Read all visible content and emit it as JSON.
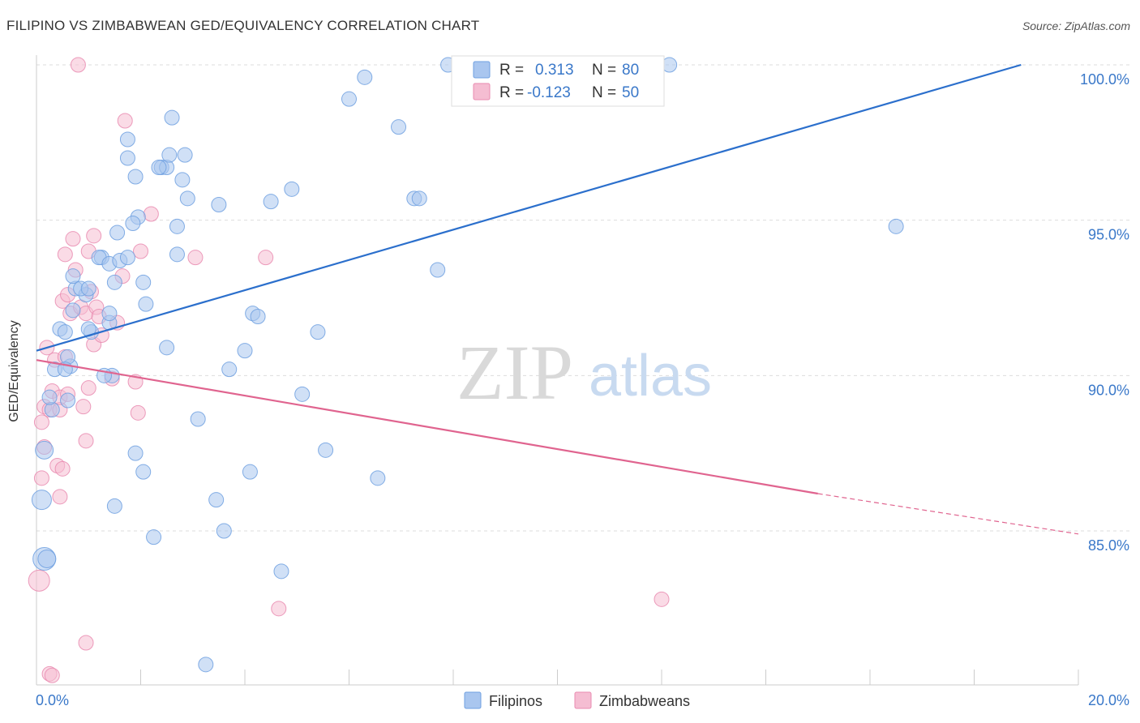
{
  "title": "FILIPINO VS ZIMBABWEAN GED/EQUIVALENCY CORRELATION CHART",
  "source": "Source: ZipAtlas.com",
  "watermark": {
    "zip": "ZIP",
    "atlas": "atlas"
  },
  "colors": {
    "filipinos": "#6fa0e0",
    "filipinos_fill": "#a9c6ef",
    "filipinos_line": "#2b6fcc",
    "zimbabweans": "#e98bb0",
    "zimbabweans_fill": "#f5bdd2",
    "zimbabweans_line": "#e0648f",
    "axis_text": "#3a78c9",
    "grid": "#dddddd"
  },
  "legend_top": {
    "rows": [
      {
        "r_label": "R =",
        "r_value": "0.313",
        "n_label": "N =",
        "n_value": "80"
      },
      {
        "r_label": "R =",
        "r_value": "-0.123",
        "n_label": "N =",
        "n_value": "50"
      }
    ]
  },
  "legend_bottom": [
    "Filipinos",
    "Zimbabweans"
  ],
  "chart_data": {
    "type": "scatter",
    "title": "FILIPINO VS ZIMBABWEAN GED/EQUIVALENCY CORRELATION CHART",
    "xlabel": "",
    "ylabel": "GED/Equivalency",
    "xlim": [
      0,
      20
    ],
    "ylim": [
      80.2,
      100.4
    ],
    "x_tick_labels": [
      "0.0%",
      "20.0%"
    ],
    "y_ticks": [
      85,
      90,
      95,
      100
    ],
    "y_tick_labels": [
      "85.0%",
      "90.0%",
      "95.0%",
      "100.0%"
    ],
    "grid": true,
    "legend_position": "bottom-center",
    "series": [
      {
        "name": "Filipinos",
        "r": 0.313,
        "n": 80,
        "trend": {
          "x0": 0.0,
          "y0": 90.8,
          "x1": 18.9,
          "y1": 100.0,
          "dashed_to": null
        },
        "points": [
          [
            0.15,
            84.1,
            14
          ],
          [
            0.2,
            84.1,
            11
          ],
          [
            0.1,
            86.0,
            12
          ],
          [
            0.15,
            87.6,
            11
          ],
          [
            0.3,
            88.9,
            9
          ],
          [
            0.25,
            89.3,
            9
          ],
          [
            0.35,
            90.2,
            9
          ],
          [
            0.6,
            89.2,
            9
          ],
          [
            0.45,
            91.5,
            9
          ],
          [
            0.55,
            91.4,
            9
          ],
          [
            0.65,
            90.3,
            9
          ],
          [
            0.6,
            90.6,
            9
          ],
          [
            0.75,
            92.8,
            9
          ],
          [
            0.7,
            93.2,
            9
          ],
          [
            0.95,
            92.6,
            9
          ],
          [
            0.85,
            92.8,
            9
          ],
          [
            0.7,
            92.1,
            9
          ],
          [
            1.05,
            91.4,
            9
          ],
          [
            1.0,
            91.5,
            9
          ],
          [
            1.25,
            93.8,
            9
          ],
          [
            1.2,
            93.8,
            9
          ],
          [
            1.4,
            93.6,
            9
          ],
          [
            1.5,
            93.0,
            9
          ],
          [
            1.6,
            93.7,
            9
          ],
          [
            1.75,
            93.8,
            9
          ],
          [
            1.55,
            94.6,
            9
          ],
          [
            1.95,
            95.1,
            9
          ],
          [
            1.85,
            94.9,
            9
          ],
          [
            1.9,
            96.4,
            9
          ],
          [
            1.75,
            97.0,
            9
          ],
          [
            1.75,
            97.6,
            9
          ],
          [
            2.4,
            96.7,
            9
          ],
          [
            2.5,
            96.7,
            9
          ],
          [
            2.6,
            98.3,
            9
          ],
          [
            2.55,
            97.1,
            9
          ],
          [
            2.85,
            97.1,
            9
          ],
          [
            2.8,
            96.3,
            9
          ],
          [
            2.9,
            95.7,
            9
          ],
          [
            2.7,
            94.8,
            9
          ],
          [
            2.7,
            93.9,
            9
          ],
          [
            2.5,
            90.9,
            9
          ],
          [
            2.1,
            92.3,
            9
          ],
          [
            2.05,
            93.0,
            9
          ],
          [
            1.4,
            91.7,
            9
          ],
          [
            1.45,
            90.0,
            9
          ],
          [
            1.4,
            92.0,
            9
          ],
          [
            1.3,
            90.0,
            9
          ],
          [
            1.9,
            87.5,
            9
          ],
          [
            2.05,
            86.9,
            9
          ],
          [
            1.5,
            85.8,
            9
          ],
          [
            2.25,
            84.8,
            9
          ],
          [
            3.1,
            88.6,
            9
          ],
          [
            3.45,
            86.0,
            9
          ],
          [
            3.6,
            85.0,
            9
          ],
          [
            3.7,
            90.2,
            9
          ],
          [
            4.0,
            90.8,
            9
          ],
          [
            4.15,
            92.0,
            9
          ],
          [
            4.25,
            91.9,
            9
          ],
          [
            4.1,
            86.9,
            9
          ],
          [
            4.7,
            83.7,
            9
          ],
          [
            5.1,
            89.4,
            9
          ],
          [
            5.4,
            91.4,
            9
          ],
          [
            5.55,
            87.6,
            9
          ],
          [
            3.5,
            95.5,
            9
          ],
          [
            4.5,
            95.6,
            9
          ],
          [
            4.9,
            96.0,
            9
          ],
          [
            6.0,
            98.9,
            9
          ],
          [
            6.3,
            99.6,
            9
          ],
          [
            6.55,
            86.7,
            9
          ],
          [
            6.95,
            98.0,
            9
          ],
          [
            7.25,
            95.7,
            9
          ],
          [
            7.35,
            95.7,
            9
          ],
          [
            7.7,
            93.4,
            9
          ],
          [
            7.9,
            100.0,
            9
          ],
          [
            12.15,
            100.0,
            9
          ],
          [
            16.5,
            94.8,
            9
          ],
          [
            3.25,
            80.7,
            9
          ],
          [
            2.35,
            96.7,
            9
          ],
          [
            1.0,
            92.8,
            9
          ],
          [
            0.55,
            90.2,
            9
          ]
        ]
      },
      {
        "name": "Zimbabweans",
        "r": -0.123,
        "n": 50,
        "trend": {
          "x0": 0.0,
          "y0": 90.5,
          "x1": 15.0,
          "y1": 86.2,
          "dashed_to": [
            20.0,
            84.9
          ]
        },
        "points": [
          [
            0.05,
            83.4,
            13
          ],
          [
            0.1,
            86.7,
            9
          ],
          [
            0.15,
            87.7,
            9
          ],
          [
            0.1,
            88.5,
            9
          ],
          [
            0.15,
            89.0,
            9
          ],
          [
            0.2,
            90.9,
            9
          ],
          [
            0.25,
            88.9,
            9
          ],
          [
            0.3,
            89.5,
            9
          ],
          [
            0.35,
            90.5,
            9
          ],
          [
            0.4,
            87.1,
            9
          ],
          [
            0.45,
            88.9,
            9
          ],
          [
            0.5,
            92.4,
            9
          ],
          [
            0.55,
            93.9,
            9
          ],
          [
            0.6,
            92.6,
            9
          ],
          [
            0.45,
            86.1,
            9
          ],
          [
            0.45,
            89.3,
            9
          ],
          [
            0.5,
            87.0,
            9
          ],
          [
            0.6,
            89.4,
            9
          ],
          [
            0.65,
            92.0,
            9
          ],
          [
            0.7,
            94.4,
            9
          ],
          [
            0.75,
            93.4,
            9
          ],
          [
            0.8,
            100.0,
            9
          ],
          [
            0.85,
            92.2,
            9
          ],
          [
            0.95,
            92.0,
            9
          ],
          [
            1.0,
            94.0,
            9
          ],
          [
            1.05,
            92.7,
            9
          ],
          [
            1.1,
            94.5,
            9
          ],
          [
            1.15,
            92.2,
            9
          ],
          [
            1.2,
            91.9,
            9
          ],
          [
            0.9,
            89.0,
            9
          ],
          [
            0.95,
            87.9,
            9
          ],
          [
            1.0,
            89.6,
            9
          ],
          [
            1.1,
            91.0,
            9
          ],
          [
            1.25,
            91.3,
            9
          ],
          [
            1.45,
            89.9,
            9
          ],
          [
            1.55,
            91.7,
            9
          ],
          [
            1.65,
            93.2,
            9
          ],
          [
            1.7,
            98.2,
            9
          ],
          [
            1.9,
            89.8,
            9
          ],
          [
            1.95,
            88.8,
            9
          ],
          [
            2.0,
            94.0,
            9
          ],
          [
            2.2,
            95.2,
            9
          ],
          [
            3.05,
            93.8,
            9
          ],
          [
            4.4,
            93.8,
            9
          ],
          [
            4.65,
            82.5,
            9
          ],
          [
            0.95,
            81.4,
            9
          ],
          [
            0.25,
            80.4,
            9
          ],
          [
            0.3,
            80.35,
            9
          ],
          [
            12.0,
            82.8,
            9
          ],
          [
            0.55,
            90.6,
            9
          ]
        ]
      }
    ]
  }
}
